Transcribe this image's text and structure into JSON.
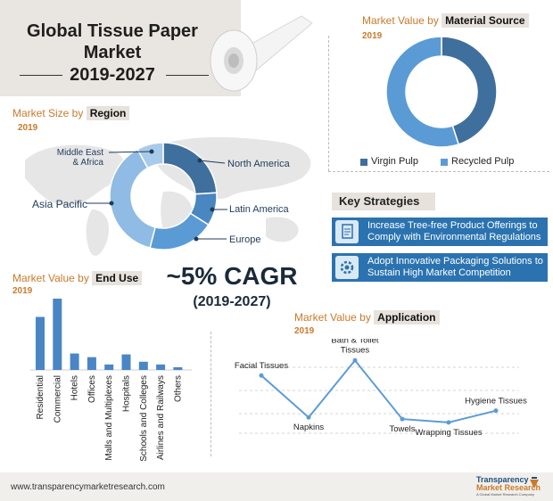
{
  "header": {
    "line1": "Global Tissue Paper",
    "line2": "Market",
    "years": "2019-2027"
  },
  "region": {
    "pre": "Market Size by",
    "highlight": "Region",
    "year": "2019"
  },
  "material": {
    "pre": "Market Value by",
    "highlight": "Material Source",
    "year": "2019"
  },
  "enduse": {
    "pre": "Market Value by",
    "highlight": "End Use",
    "year": "2019"
  },
  "application": {
    "pre": "Market Value by",
    "highlight": "Application",
    "year": "2019"
  },
  "cagr": {
    "value": "~5% CAGR",
    "years": "(2019-2027)"
  },
  "key_strategies": {
    "title": "Key Strategies",
    "items": [
      "Increase Tree-free Product Offerings to Comply with Environmental Regulations",
      "Adopt Innovative Packaging Solutions to Sustain High Market Competition"
    ]
  },
  "footer": {
    "url": "www.transparencymarketresearch.com",
    "logo_line1": "Transparency",
    "logo_line2": "Market Research",
    "logo_sub": "A Global Market Research Company"
  },
  "colors": {
    "dark_blue": "#3f6f9c",
    "mid_blue": "#4a86c0",
    "light_blue": "#7fb0de",
    "pale_blue": "#a9cbea",
    "accent_orange": "#c97a2b",
    "bar_blue": "#4a86c5"
  },
  "chart_data": [
    {
      "type": "pie",
      "subtype": "donut",
      "categories": [
        "North America",
        "Latin America",
        "Europe",
        "Asia Pacific",
        "Middle East & Africa"
      ],
      "values": [
        24,
        10,
        20,
        38,
        8
      ]
    },
    {
      "type": "pie",
      "subtype": "donut",
      "categories": [
        "Virgin Pulp",
        "Recycled Pulp"
      ],
      "values": [
        45,
        55
      ]
    },
    {
      "type": "bar",
      "categories": [
        "Residential",
        "Commercial",
        "Hotels",
        "Offices",
        "Malls and Multiplexes",
        "Hospitals",
        "Schools and Colleges",
        "Airlines and Railways",
        "Others"
      ],
      "values": [
        58,
        78,
        18,
        14,
        6,
        17,
        9,
        6,
        3
      ]
    },
    {
      "type": "line",
      "categories": [
        "Facial Tissues",
        "Napkins",
        "Bath & Toilet Tissues",
        "Towels",
        "Wrapping Tissues",
        "Hygiene Tissues"
      ],
      "values": [
        70,
        20,
        88,
        18,
        14,
        28
      ]
    }
  ]
}
